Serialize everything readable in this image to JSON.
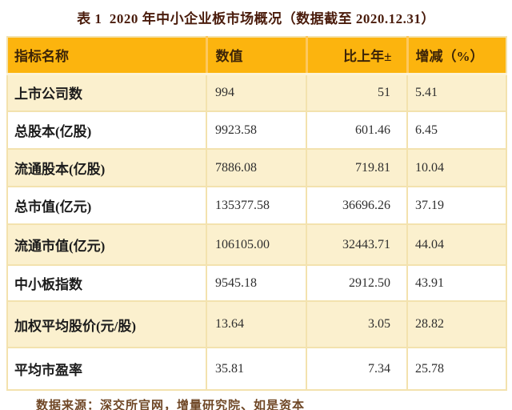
{
  "figure": {
    "title": "表 1  2020 年中小企业板市场概况（数据截至 2020.12.31）",
    "source_note": "数据来源：深交所官网，增量研究院、如是资本"
  },
  "table": {
    "columns": [
      {
        "key": "name",
        "label": "指标名称"
      },
      {
        "key": "value",
        "label": "数值"
      },
      {
        "key": "change",
        "label": "比上年±"
      },
      {
        "key": "pct",
        "label": "增减（%）"
      }
    ],
    "rows": [
      {
        "name": "上市公司数",
        "value": "994",
        "change": "51",
        "pct": "5.41"
      },
      {
        "name": "总股本(亿股)",
        "value": "9923.58",
        "change": "601.46",
        "pct": "6.45"
      },
      {
        "name": "流通股本(亿股)",
        "value": "7886.08",
        "change": "719.81",
        "pct": "10.04"
      },
      {
        "name": "总市值(亿元)",
        "value": "135377.58",
        "change": "36696.26",
        "pct": "37.19"
      },
      {
        "name": "流通市值(亿元)",
        "value": "106105.00",
        "change": "32443.71",
        "pct": "44.04"
      },
      {
        "name": "中小板指数",
        "value": "9545.18",
        "change": "2912.50",
        "pct": "43.91"
      },
      {
        "name": "加权平均股价(元/股)",
        "value": "13.64",
        "change": "3.05",
        "pct": "28.82"
      },
      {
        "name": "平均市盈率",
        "value": "35.81",
        "change": "7.34",
        "pct": "25.78"
      }
    ]
  },
  "colors": {
    "header_bg": "#FCB40E",
    "header_text": "#3C2408",
    "header_divider": "#FDC85F",
    "row_alt_bg": "#FBF0CE",
    "row_bg": "#FFFFFF",
    "grid_border": "#F3E2AE",
    "title_text": "#4A1C0C",
    "source_text": "#6F4726",
    "body_text": "#2F2F2F"
  }
}
